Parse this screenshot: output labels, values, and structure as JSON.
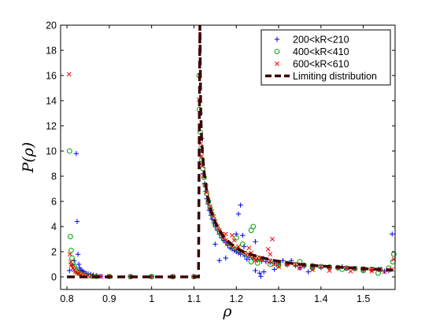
{
  "chart_data": {
    "type": "scatter",
    "xlabel": "ρ",
    "ylabel": "P(ρ)",
    "xlim": [
      0.785,
      1.575
    ],
    "ylim": [
      -1,
      20
    ],
    "xticks": [
      0.8,
      0.9,
      1,
      1.1,
      1.2,
      1.3,
      1.4,
      1.5
    ],
    "xtick_labels": [
      "0.8",
      "0.9",
      "1",
      "1.1",
      "1.2",
      "1.3",
      "1.4",
      "1.5"
    ],
    "yticks": [
      0,
      2,
      4,
      6,
      8,
      10,
      12,
      14,
      16,
      18,
      20
    ],
    "ytick_labels": [
      "0",
      "2",
      "4",
      "6",
      "8",
      "10",
      "12",
      "14",
      "16",
      "18",
      "20"
    ],
    "grid": false,
    "legend_position": "top-right",
    "series": [
      {
        "name": "200<kR<210",
        "marker": "plus",
        "color": "#0000ff",
        "points": [
          [
            0.806,
            0.5
          ],
          [
            0.812,
            0.9
          ],
          [
            0.817,
            1.3
          ],
          [
            0.822,
            9.8
          ],
          [
            0.824,
            4.4
          ],
          [
            0.826,
            1.8
          ],
          [
            0.828,
            1.0
          ],
          [
            0.83,
            0.7
          ],
          [
            0.833,
            0.55
          ],
          [
            0.836,
            0.45
          ],
          [
            0.84,
            0.4
          ],
          [
            0.845,
            0.3
          ],
          [
            0.85,
            0.25
          ],
          [
            0.856,
            0.2
          ],
          [
            0.862,
            0.15
          ],
          [
            0.87,
            0.1
          ],
          [
            0.88,
            0.05
          ],
          [
            0.9,
            0.05
          ],
          [
            0.95,
            0.03
          ],
          [
            1.0,
            0.02
          ],
          [
            1.05,
            0.02
          ],
          [
            1.1,
            0.03
          ],
          [
            1.115,
            13.0
          ],
          [
            1.118,
            11.0
          ],
          [
            1.12,
            9.0
          ],
          [
            1.122,
            8.2
          ],
          [
            1.125,
            7.4
          ],
          [
            1.128,
            6.8
          ],
          [
            1.13,
            6.2
          ],
          [
            1.133,
            5.8
          ],
          [
            1.136,
            5.3
          ],
          [
            1.14,
            4.9
          ],
          [
            1.143,
            4.6
          ],
          [
            1.147,
            4.3
          ],
          [
            1.15,
            4.0
          ],
          [
            1.155,
            3.7
          ],
          [
            1.16,
            3.4
          ],
          [
            1.165,
            3.1
          ],
          [
            1.17,
            2.9
          ],
          [
            1.175,
            2.7
          ],
          [
            1.18,
            2.5
          ],
          [
            1.185,
            2.3
          ],
          [
            1.19,
            2.2
          ],
          [
            1.195,
            2.1
          ],
          [
            1.2,
            2.0
          ],
          [
            1.205,
            1.9
          ],
          [
            1.21,
            1.8
          ],
          [
            1.22,
            1.65
          ],
          [
            1.23,
            1.55
          ],
          [
            1.24,
            1.45
          ],
          [
            1.25,
            1.35
          ],
          [
            1.26,
            1.25
          ],
          [
            1.27,
            1.2
          ],
          [
            1.28,
            1.15
          ],
          [
            1.29,
            1.1
          ],
          [
            1.3,
            1.05
          ],
          [
            1.32,
            0.95
          ],
          [
            1.34,
            0.9
          ],
          [
            1.36,
            0.85
          ],
          [
            1.38,
            0.8
          ],
          [
            1.4,
            0.75
          ],
          [
            1.42,
            0.72
          ],
          [
            1.44,
            0.7
          ],
          [
            1.46,
            0.68
          ],
          [
            1.48,
            0.65
          ],
          [
            1.5,
            0.62
          ],
          [
            1.52,
            0.58
          ],
          [
            1.54,
            0.55
          ],
          [
            1.56,
            0.5
          ],
          [
            1.15,
            2.6
          ],
          [
            1.16,
            1.3
          ],
          [
            1.175,
            1.5
          ],
          [
            1.2,
            3.4
          ],
          [
            1.205,
            5.0
          ],
          [
            1.21,
            5.7
          ],
          [
            1.215,
            3.3
          ],
          [
            1.218,
            2.4
          ],
          [
            1.225,
            1.4
          ],
          [
            1.245,
            2.8
          ],
          [
            1.255,
            0.3
          ],
          [
            1.258,
            0.05
          ],
          [
            1.265,
            0.4
          ],
          [
            1.245,
            0.5
          ],
          [
            1.29,
            0.6
          ],
          [
            1.31,
            1.3
          ],
          [
            1.33,
            1.3
          ],
          [
            1.35,
            0.7
          ],
          [
            1.37,
            0.4
          ],
          [
            1.45,
            0.8
          ],
          [
            1.5,
            0.55
          ],
          [
            1.535,
            0.6
          ],
          [
            1.55,
            0.45
          ],
          [
            1.568,
            3.4
          ]
        ]
      },
      {
        "name": "400<kR<410",
        "marker": "circle",
        "color": "#00a000",
        "points": [
          [
            0.806,
            10.0
          ],
          [
            0.808,
            3.2
          ],
          [
            0.81,
            2.1
          ],
          [
            0.812,
            1.5
          ],
          [
            0.814,
            1.1
          ],
          [
            0.817,
            0.8
          ],
          [
            0.82,
            0.6
          ],
          [
            0.823,
            0.45
          ],
          [
            0.826,
            0.35
          ],
          [
            0.83,
            0.28
          ],
          [
            0.835,
            0.2
          ],
          [
            0.84,
            0.15
          ],
          [
            0.85,
            0.1
          ],
          [
            0.86,
            0.06
          ],
          [
            0.87,
            0.04
          ],
          [
            0.9,
            0.03
          ],
          [
            0.95,
            0.02
          ],
          [
            1.0,
            0.02
          ],
          [
            1.05,
            0.02
          ],
          [
            1.1,
            0.02
          ],
          [
            1.112,
            16.0
          ],
          [
            1.113,
            13.3
          ],
          [
            1.115,
            11.5
          ],
          [
            1.117,
            10.2
          ],
          [
            1.119,
            9.3
          ],
          [
            1.121,
            8.6
          ],
          [
            1.124,
            7.9
          ],
          [
            1.127,
            7.3
          ],
          [
            1.13,
            6.6
          ],
          [
            1.134,
            6.0
          ],
          [
            1.138,
            5.5
          ],
          [
            1.142,
            5.0
          ],
          [
            1.146,
            4.6
          ],
          [
            1.15,
            4.2
          ],
          [
            1.155,
            3.9
          ],
          [
            1.16,
            3.6
          ],
          [
            1.165,
            3.3
          ],
          [
            1.17,
            3.0
          ],
          [
            1.18,
            2.7
          ],
          [
            1.19,
            2.4
          ],
          [
            1.2,
            2.2
          ],
          [
            1.21,
            2.0
          ],
          [
            1.22,
            1.85
          ],
          [
            1.23,
            1.7
          ],
          [
            1.24,
            1.6
          ],
          [
            1.25,
            1.5
          ],
          [
            1.26,
            1.4
          ],
          [
            1.28,
            1.25
          ],
          [
            1.3,
            1.15
          ],
          [
            1.32,
            1.05
          ],
          [
            1.34,
            0.98
          ],
          [
            1.36,
            0.92
          ],
          [
            1.38,
            0.87
          ],
          [
            1.4,
            0.82
          ],
          [
            1.42,
            0.78
          ],
          [
            1.44,
            0.74
          ],
          [
            1.46,
            0.7
          ],
          [
            1.48,
            0.66
          ],
          [
            1.5,
            0.62
          ],
          [
            1.52,
            0.6
          ],
          [
            1.54,
            0.58
          ],
          [
            1.56,
            0.7
          ],
          [
            1.2,
            3.1
          ],
          [
            1.215,
            2.6
          ],
          [
            1.235,
            3.7
          ],
          [
            1.24,
            4.0
          ],
          [
            1.235,
            1.2
          ],
          [
            1.25,
            1.1
          ],
          [
            1.26,
            1.4
          ],
          [
            1.28,
            1.0
          ],
          [
            1.3,
            0.9
          ],
          [
            1.35,
            1.2
          ],
          [
            1.38,
            0.7
          ],
          [
            1.45,
            0.6
          ],
          [
            1.5,
            0.5
          ],
          [
            1.535,
            0.3
          ],
          [
            1.57,
            1.2
          ],
          [
            1.572,
            1.8
          ]
        ]
      },
      {
        "name": "600<kR<610",
        "marker": "x",
        "color": "#ff0000",
        "points": [
          [
            0.805,
            16.1
          ],
          [
            0.807,
            1.8
          ],
          [
            0.809,
            1.2
          ],
          [
            0.811,
            0.9
          ],
          [
            0.814,
            0.7
          ],
          [
            0.817,
            0.55
          ],
          [
            0.82,
            0.42
          ],
          [
            0.824,
            0.33
          ],
          [
            0.828,
            0.26
          ],
          [
            0.833,
            0.2
          ],
          [
            0.84,
            0.15
          ],
          [
            0.85,
            0.1
          ],
          [
            0.86,
            0.06
          ],
          [
            0.88,
            0.04
          ],
          [
            0.9,
            0.03
          ],
          [
            0.95,
            0.02
          ],
          [
            1.0,
            0.02
          ],
          [
            1.05,
            0.02
          ],
          [
            1.1,
            0.02
          ],
          [
            1.112,
            14.1
          ],
          [
            1.114,
            12.0
          ],
          [
            1.116,
            10.6
          ],
          [
            1.118,
            9.6
          ],
          [
            1.12,
            8.8
          ],
          [
            1.123,
            8.0
          ],
          [
            1.126,
            7.3
          ],
          [
            1.13,
            6.7
          ],
          [
            1.134,
            6.1
          ],
          [
            1.138,
            5.6
          ],
          [
            1.142,
            5.2
          ],
          [
            1.146,
            4.8
          ],
          [
            1.15,
            4.4
          ],
          [
            1.155,
            4.0
          ],
          [
            1.16,
            3.7
          ],
          [
            1.165,
            3.4
          ],
          [
            1.17,
            3.1
          ],
          [
            1.175,
            2.9
          ],
          [
            1.18,
            2.7
          ],
          [
            1.19,
            2.45
          ],
          [
            1.2,
            2.25
          ],
          [
            1.21,
            2.05
          ],
          [
            1.22,
            1.9
          ],
          [
            1.23,
            1.75
          ],
          [
            1.24,
            1.6
          ],
          [
            1.25,
            1.5
          ],
          [
            1.26,
            1.4
          ],
          [
            1.28,
            1.25
          ],
          [
            1.3,
            1.15
          ],
          [
            1.32,
            1.06
          ],
          [
            1.34,
            0.98
          ],
          [
            1.36,
            0.92
          ],
          [
            1.38,
            0.86
          ],
          [
            1.4,
            0.81
          ],
          [
            1.42,
            0.77
          ],
          [
            1.44,
            0.73
          ],
          [
            1.46,
            0.7
          ],
          [
            1.48,
            0.67
          ],
          [
            1.5,
            0.64
          ],
          [
            1.52,
            0.62
          ],
          [
            1.54,
            0.6
          ],
          [
            1.56,
            0.55
          ],
          [
            1.175,
            3.4
          ],
          [
            1.19,
            3.3
          ],
          [
            1.195,
            2.9
          ],
          [
            1.205,
            2.4
          ],
          [
            1.23,
            2.3
          ],
          [
            1.235,
            1.9
          ],
          [
            1.245,
            1.3
          ],
          [
            1.26,
            1.5
          ],
          [
            1.275,
            2.2
          ],
          [
            1.285,
            3.0
          ],
          [
            1.28,
            1.8
          ],
          [
            1.29,
            1.0
          ],
          [
            1.3,
            0.8
          ],
          [
            1.32,
            1.0
          ],
          [
            1.35,
            0.7
          ],
          [
            1.38,
            0.55
          ],
          [
            1.42,
            0.5
          ],
          [
            1.47,
            0.45
          ],
          [
            1.52,
            0.45
          ],
          [
            1.55,
            0.4
          ],
          [
            1.568,
            0.6
          ],
          [
            1.572,
            1.4
          ]
        ]
      },
      {
        "name": "Limiting distribution",
        "marker": "dashed-line",
        "color": "#3d0000",
        "points": [
          [
            0.8,
            0.0
          ],
          [
            1.1107,
            0.0
          ],
          [
            1.114,
            20.0
          ],
          [
            1.116,
            13.0
          ],
          [
            1.118,
            11.0
          ],
          [
            1.12,
            9.8
          ],
          [
            1.123,
            8.6
          ],
          [
            1.127,
            7.5
          ],
          [
            1.131,
            6.6
          ],
          [
            1.136,
            5.8
          ],
          [
            1.142,
            5.05
          ],
          [
            1.15,
            4.35
          ],
          [
            1.16,
            3.7
          ],
          [
            1.17,
            3.2
          ],
          [
            1.18,
            2.85
          ],
          [
            1.19,
            2.55
          ],
          [
            1.2,
            2.3
          ],
          [
            1.21,
            2.1
          ],
          [
            1.22,
            1.95
          ],
          [
            1.235,
            1.78
          ],
          [
            1.25,
            1.62
          ],
          [
            1.27,
            1.45
          ],
          [
            1.29,
            1.3
          ],
          [
            1.31,
            1.18
          ],
          [
            1.33,
            1.08
          ],
          [
            1.35,
            1.0
          ],
          [
            1.37,
            0.94
          ],
          [
            1.4,
            0.86
          ],
          [
            1.43,
            0.8
          ],
          [
            1.46,
            0.74
          ],
          [
            1.49,
            0.68
          ],
          [
            1.52,
            0.62
          ],
          [
            1.55,
            0.57
          ],
          [
            1.57,
            0.53
          ]
        ]
      }
    ]
  }
}
